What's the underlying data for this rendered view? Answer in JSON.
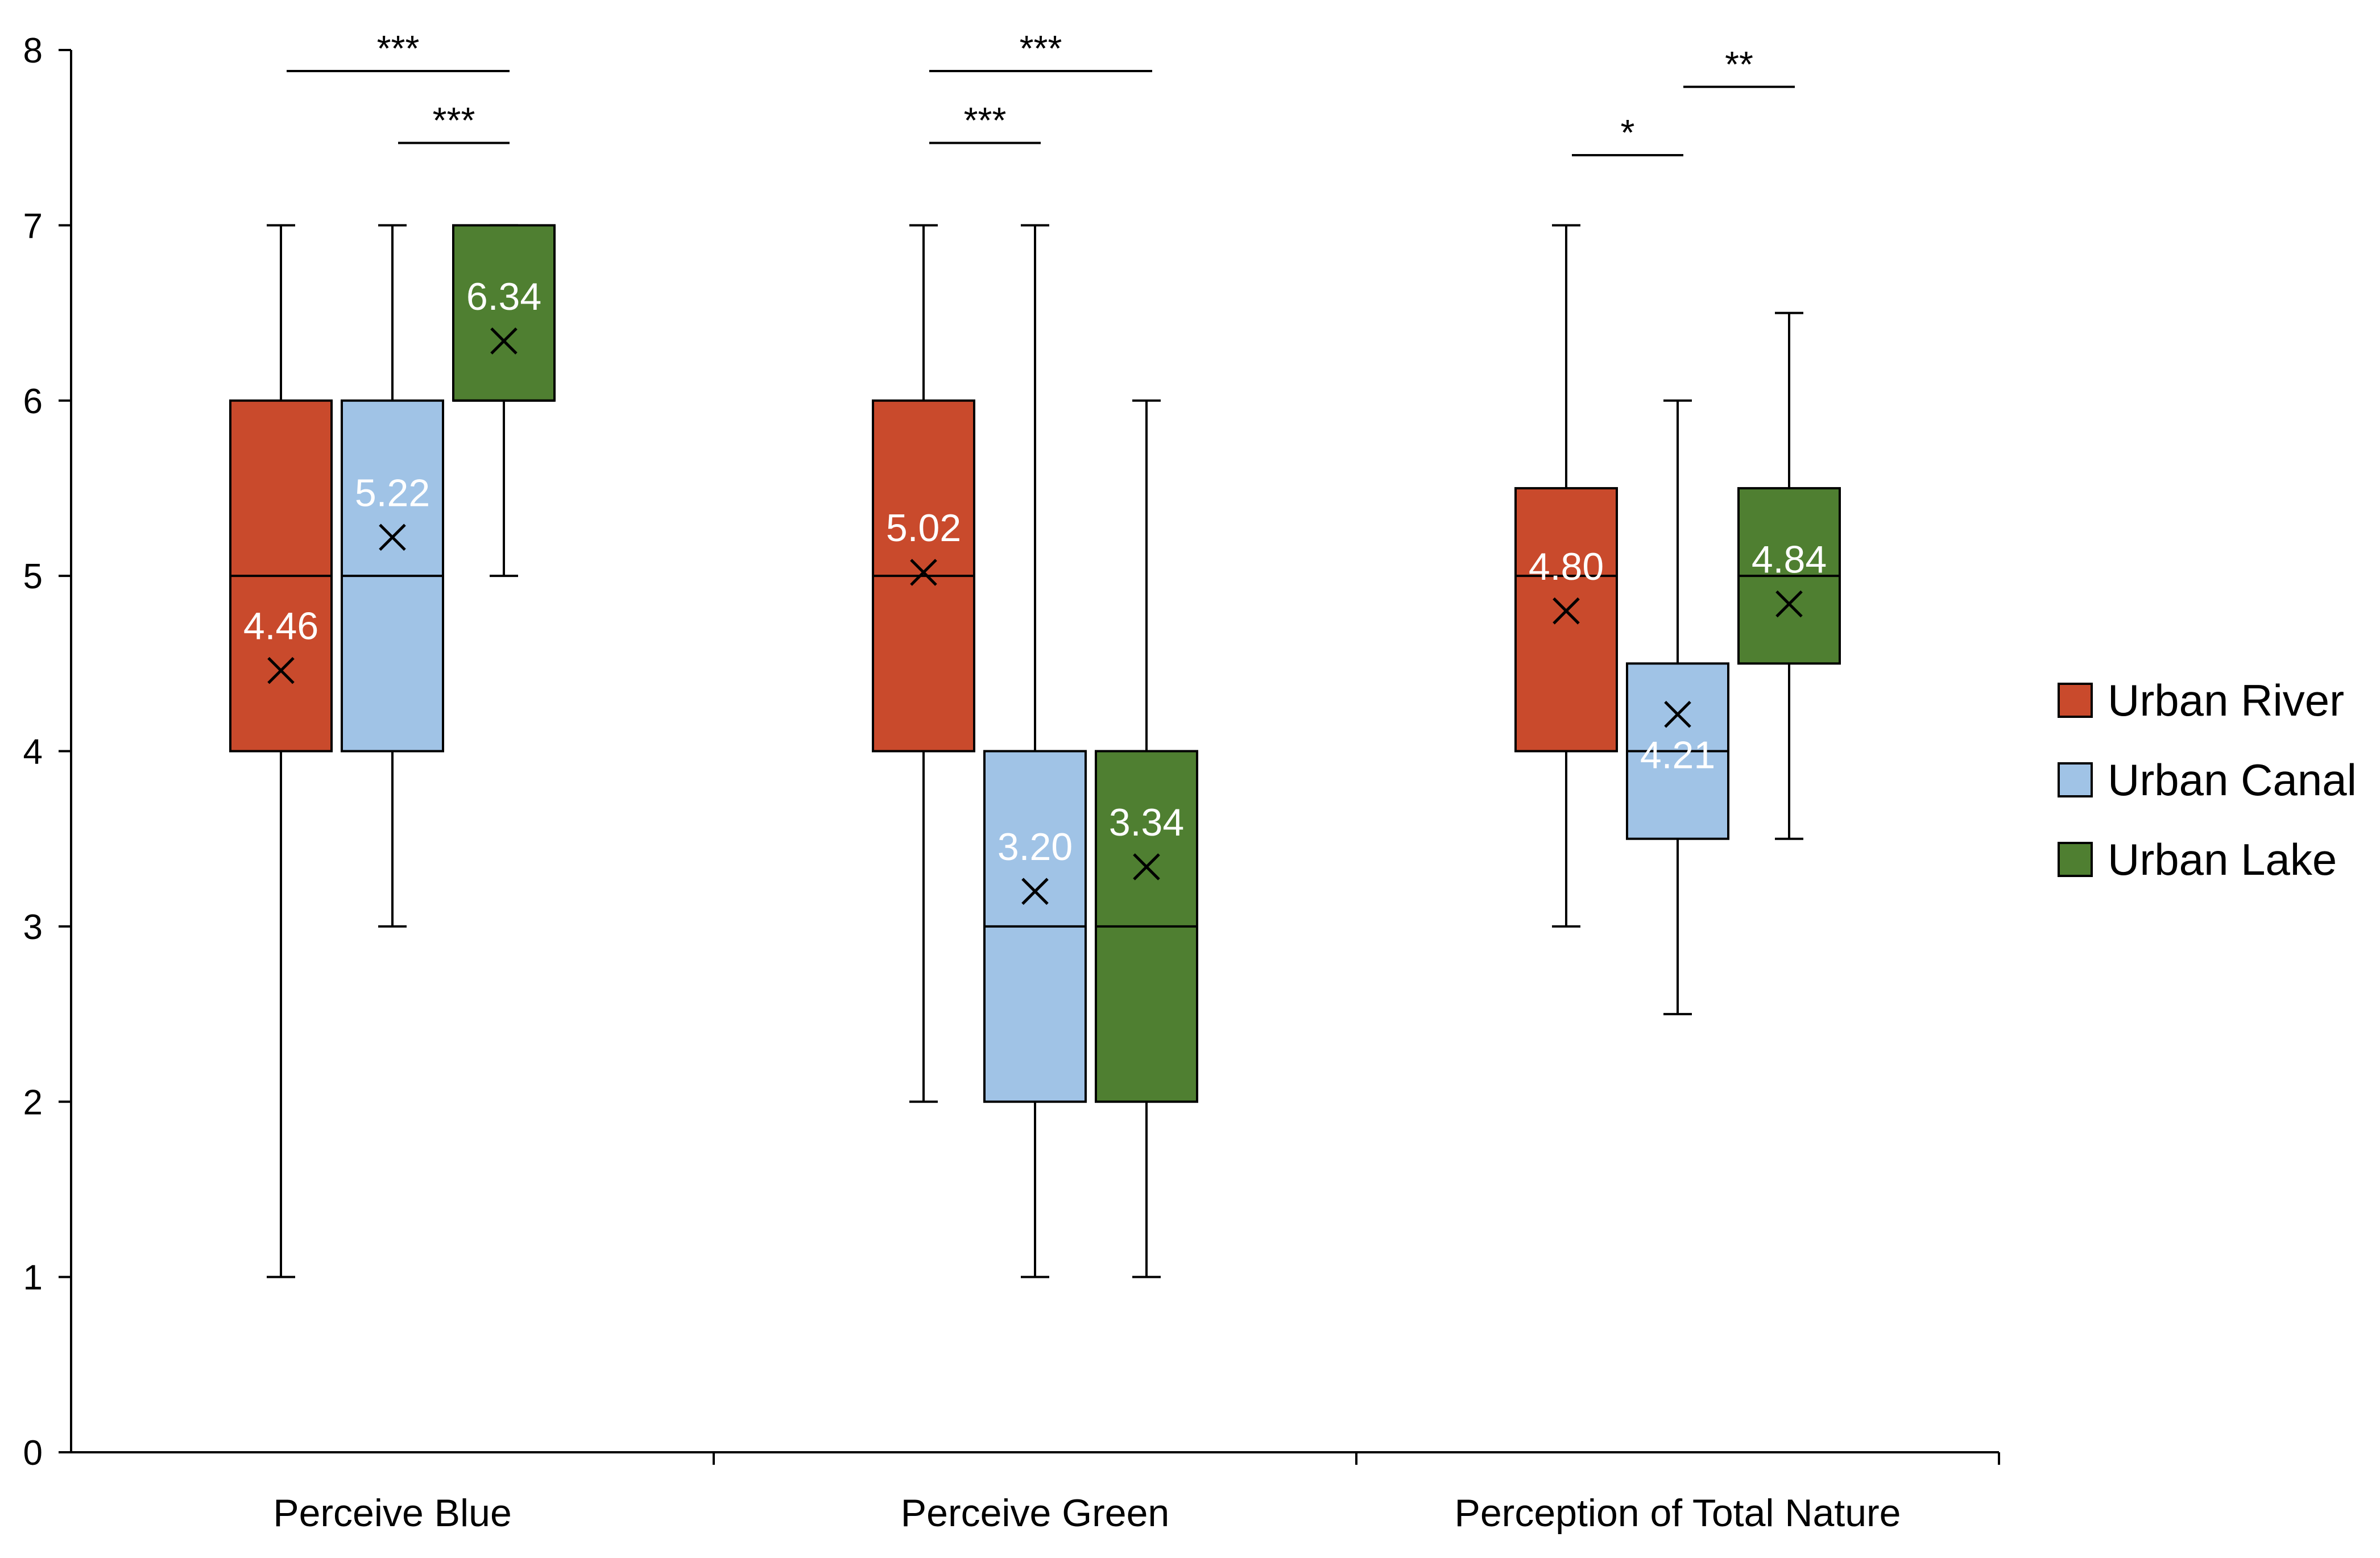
{
  "chart_data": {
    "type": "box",
    "title": "",
    "xlabel": "",
    "ylabel": "",
    "ylim": [
      0,
      8
    ],
    "yticks": [
      0,
      1,
      2,
      3,
      4,
      5,
      6,
      7,
      8
    ],
    "ytick_labels": [
      "0",
      "1",
      "2",
      "3",
      "4",
      "5",
      "6",
      "7",
      "8"
    ],
    "grid": false,
    "legend_position": "right",
    "categories": [
      "Perceive Blue",
      "Perceive Green",
      "Perception of Total Nature"
    ],
    "series": [
      {
        "name": "Urban River",
        "color": "#C94A2C",
        "boxes": [
          {
            "min": 1,
            "q1": 4,
            "median": 5,
            "q3": 6,
            "max": 7,
            "mean": 4.46,
            "mean_label": "4.46"
          },
          {
            "min": 2,
            "q1": 4,
            "median": 5,
            "q3": 6,
            "max": 7,
            "mean": 5.02,
            "mean_label": "5.02"
          },
          {
            "min": 3,
            "q1": 4,
            "median": 5,
            "q3": 5.5,
            "max": 7,
            "mean": 4.8,
            "mean_label": "4.80"
          }
        ]
      },
      {
        "name": "Urban Canal",
        "color": "#A0C3E6",
        "boxes": [
          {
            "min": 3,
            "q1": 4,
            "median": 5,
            "q3": 6,
            "max": 7,
            "mean": 5.22,
            "mean_label": "5.22"
          },
          {
            "min": 1,
            "q1": 2,
            "median": 3,
            "q3": 4,
            "max": 7,
            "mean": 3.2,
            "mean_label": "3.20"
          },
          {
            "min": 2.5,
            "q1": 3.5,
            "median": 4,
            "q3": 4.5,
            "max": 6,
            "mean": 4.21,
            "mean_label": "4.21"
          }
        ]
      },
      {
        "name": "Urban Lake",
        "color": "#4F7F31",
        "boxes": [
          {
            "min": 5,
            "q1": 6,
            "median": 6,
            "q3": 7,
            "max": 7,
            "mean": 6.34,
            "mean_label": "6.34"
          },
          {
            "min": 1,
            "q1": 2,
            "median": 3,
            "q3": 4,
            "max": 6,
            "mean": 3.34,
            "mean_label": "3.34"
          },
          {
            "min": 3.5,
            "q1": 4.5,
            "median": 5,
            "q3": 5.5,
            "max": 6.5,
            "mean": 4.84,
            "mean_label": "4.84"
          }
        ]
      }
    ],
    "significance": [
      {
        "category": 0,
        "from_series": 0,
        "to_series": 2,
        "label": "***",
        "y": 7.88
      },
      {
        "category": 0,
        "from_series": 1,
        "to_series": 2,
        "label": "***",
        "y": 7.47
      },
      {
        "category": 1,
        "from_series": 0,
        "to_series": 2,
        "label": "***",
        "y": 7.88
      },
      {
        "category": 1,
        "from_series": 0,
        "to_series": 1,
        "label": "***",
        "y": 7.47
      },
      {
        "category": 2,
        "from_series": 0,
        "to_series": 1,
        "label": "*",
        "y": 7.4
      },
      {
        "category": 2,
        "from_series": 1,
        "to_series": 2,
        "label": "**",
        "y": 7.79
      }
    ]
  }
}
